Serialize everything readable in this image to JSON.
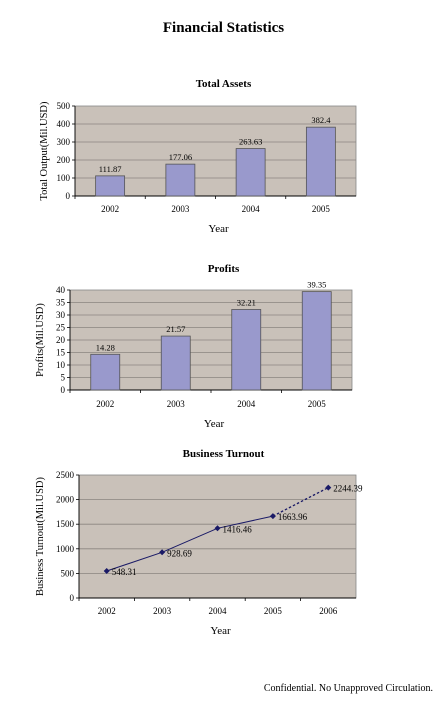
{
  "page": {
    "title": "Financial Statistics",
    "footer": "Confidential. No Unapproved Circulation."
  },
  "chart_data": [
    {
      "type": "bar",
      "title": "Total Assets",
      "xlabel": "Year",
      "ylabel": "Total Output(Mil.USD)",
      "categories": [
        "2002",
        "2003",
        "2004",
        "2005"
      ],
      "values": [
        111.87,
        177.06,
        263.63,
        382.4
      ],
      "value_labels": [
        "111.87",
        "177.06",
        "263.63",
        "382.4"
      ],
      "ylim": [
        0,
        500
      ],
      "yticks": [
        0,
        100,
        200,
        300,
        400,
        500
      ],
      "grid": true,
      "bar_color": "#9999cc",
      "plot_background": "#c9c1b9"
    },
    {
      "type": "bar",
      "title": "Profits",
      "xlabel": "Year",
      "ylabel": "Profits(Mil.USD)",
      "categories": [
        "2002",
        "2003",
        "2004",
        "2005"
      ],
      "values": [
        14.28,
        21.57,
        32.21,
        39.35
      ],
      "value_labels": [
        "14.28",
        "21.57",
        "32.21",
        "39.35"
      ],
      "ylim": [
        0,
        40
      ],
      "yticks": [
        0,
        5,
        10,
        15,
        20,
        25,
        30,
        35,
        40
      ],
      "grid": true,
      "bar_color": "#9999cc",
      "plot_background": "#c9c1b9"
    },
    {
      "type": "line",
      "title": "Business Turnout",
      "xlabel": "Year",
      "ylabel": "Business Turnout(Mil.USD)",
      "categories": [
        "2002",
        "2003",
        "2004",
        "2005",
        "2006"
      ],
      "values": [
        548.31,
        928.69,
        1416.46,
        1663.96,
        2244.39
      ],
      "value_labels": [
        "548.31",
        "928.69",
        "1416.46",
        "1663.96",
        "2244.39"
      ],
      "projected_from_index": 3,
      "ylim": [
        0,
        2500
      ],
      "yticks": [
        0,
        500,
        1000,
        1500,
        2000,
        2500
      ],
      "grid": true,
      "line_color": "#1a1a66",
      "plot_background": "#c9c1b9"
    }
  ]
}
